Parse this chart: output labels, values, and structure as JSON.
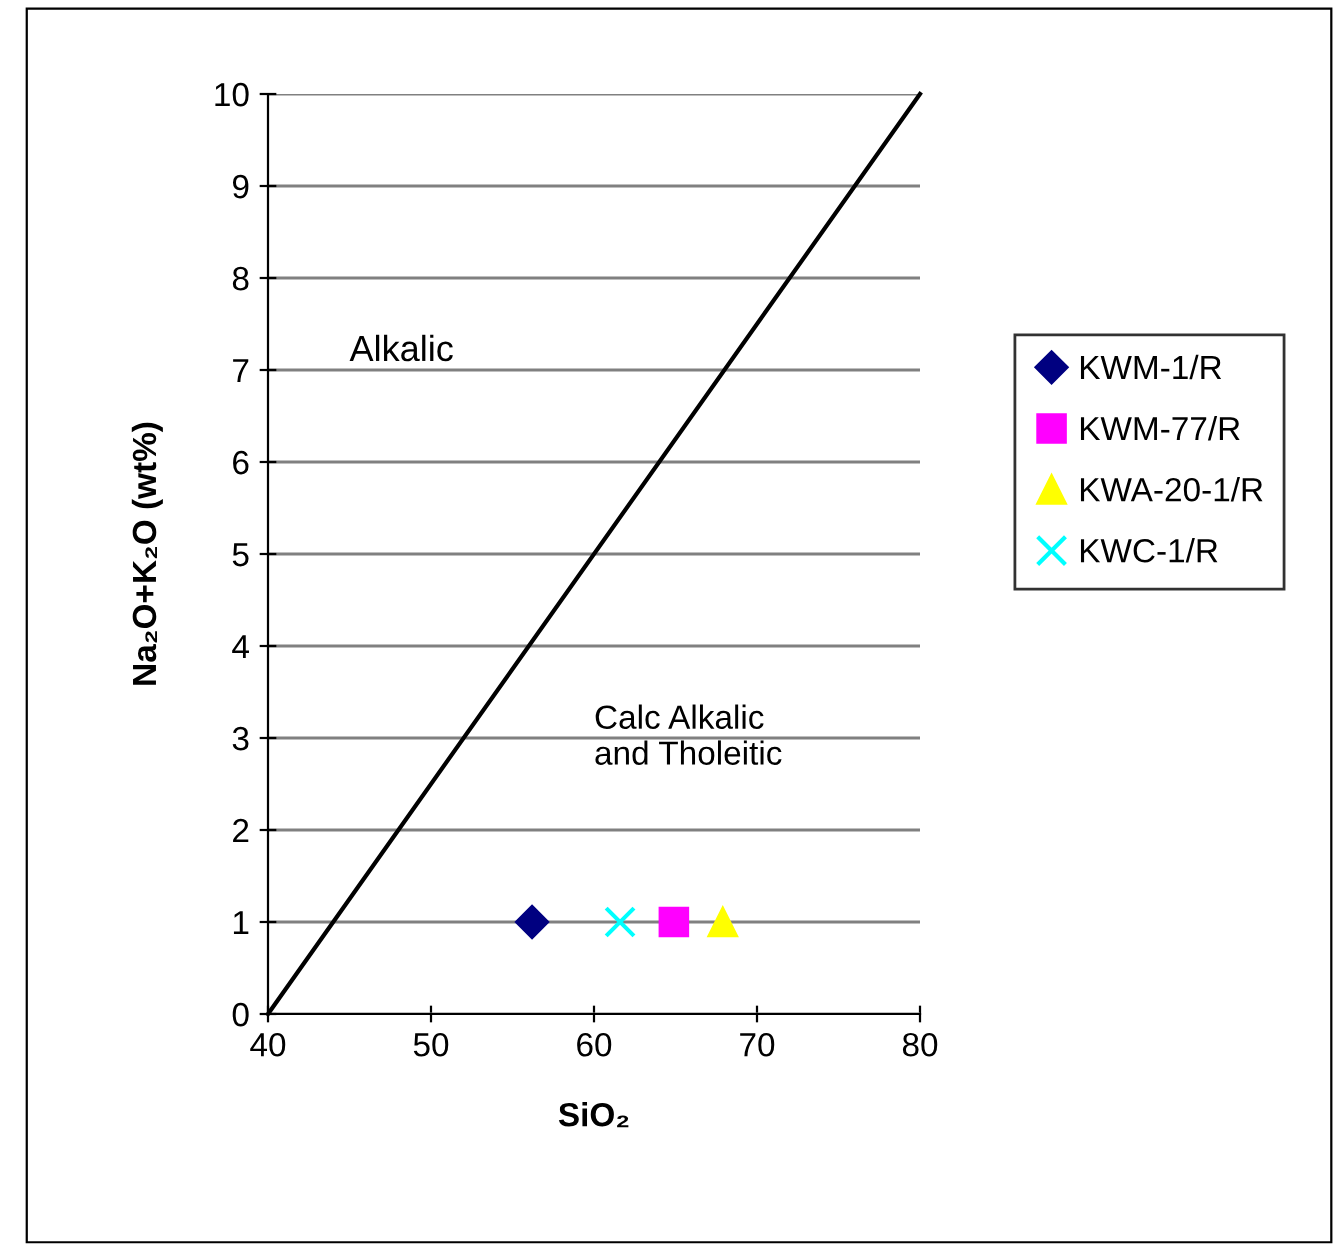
{
  "chart_data": {
    "type": "scatter",
    "xlabel": "SiO₂",
    "ylabel": "Na₂O+K₂O (wt%)",
    "xlim": [
      40,
      80
    ],
    "xticks": [
      40,
      50,
      60,
      70,
      80
    ],
    "ylim": [
      0,
      10
    ],
    "yticks": [
      0,
      1,
      2,
      3,
      4,
      5,
      6,
      7,
      8,
      9,
      10
    ],
    "grid": "y",
    "legend": "right",
    "series": [
      {
        "type": "line",
        "color": "#000000",
        "x": [
          40,
          80
        ],
        "values": [
          0,
          10
        ],
        "line_style": "solid"
      },
      {
        "name": "KWM-1/R",
        "color": "#000080",
        "x": [
          56.2
        ],
        "values": [
          1
        ],
        "marker": "diamond"
      },
      {
        "name": "KWM-77/R",
        "color": "#ff00ff",
        "x": [
          64.9
        ],
        "values": [
          1
        ],
        "marker": "square"
      },
      {
        "name": "KWA-20-1/R",
        "color": "#ffff00",
        "x": [
          67.9
        ],
        "values": [
          1
        ],
        "marker": "triangle"
      },
      {
        "name": "KWC-1/R",
        "color": "#00ffff",
        "x": [
          61.6
        ],
        "values": [
          1
        ],
        "marker": "cross"
      }
    ],
    "annotations": [
      "Alkalic",
      "Calc Alkalic\nand Tholeitic"
    ]
  }
}
